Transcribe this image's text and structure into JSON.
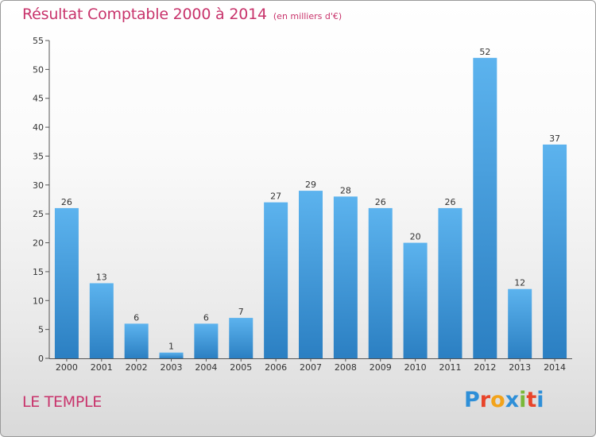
{
  "chart_data": {
    "type": "bar",
    "title": "Résultat Comptable 2000 à 2014",
    "subtitle": "(en milliers d'€)",
    "categories": [
      "2000",
      "2001",
      "2002",
      "2003",
      "2004",
      "2005",
      "2006",
      "2007",
      "2008",
      "2009",
      "2010",
      "2011",
      "2012",
      "2013",
      "2014"
    ],
    "values": [
      26,
      13,
      6,
      1,
      6,
      7,
      27,
      29,
      28,
      26,
      20,
      26,
      52,
      12,
      37
    ],
    "yticks": [
      0,
      5,
      10,
      15,
      20,
      25,
      30,
      35,
      40,
      45,
      50,
      55
    ],
    "ylim": [
      0,
      55
    ],
    "grid": false,
    "data_labels": true,
    "bar_color_light": "#5cb3ee",
    "bar_color_dark": "#2b7fc2",
    "axis_color": "#555555"
  },
  "place_name": "LE TEMPLE",
  "logo": {
    "text": "Proxiti",
    "letter_colors": [
      "#2e8fd8",
      "#e8442a",
      "#f2a31b",
      "#2e8fd8",
      "#7ab83a",
      "#e8442a",
      "#2e8fd8"
    ]
  },
  "colors": {
    "title": "#c8336b"
  }
}
